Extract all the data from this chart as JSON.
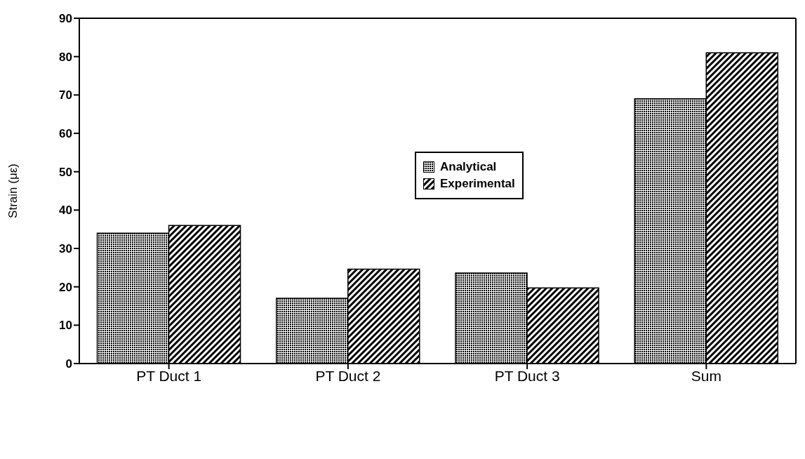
{
  "chart_data": {
    "type": "bar",
    "ylabel": "Strain (με)",
    "categories": [
      "PT Duct 1",
      "PT Duct 2",
      "PT Duct 3",
      "Sum"
    ],
    "series": [
      {
        "name": "Analytical",
        "color": "#000000",
        "values": [
          34,
          17,
          23.6,
          69
        ]
      },
      {
        "name": "Experimental",
        "color": "#000000",
        "values": [
          36,
          24.6,
          19.7,
          81
        ]
      }
    ],
    "ylim": [
      0,
      90
    ],
    "yticks": [
      0,
      10,
      20,
      30,
      40,
      50,
      60,
      70,
      80,
      90
    ],
    "grid": false,
    "legend": "center"
  }
}
